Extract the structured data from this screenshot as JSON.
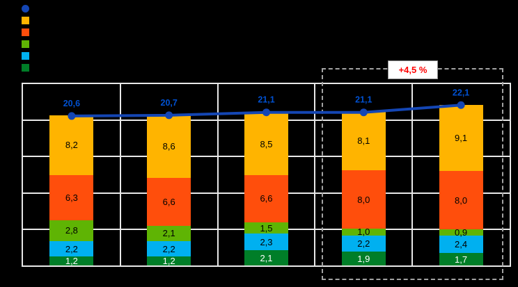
{
  "canvas": {
    "background": "#000000",
    "plot_background": "#000000",
    "grid_color": "#E8E8E8"
  },
  "legend": {
    "position": "top-left",
    "items": [
      {
        "name": "total-line",
        "marker": "circle",
        "color": "#1446B4"
      },
      {
        "name": "segment-orange",
        "marker": "square",
        "color": "#FFB400"
      },
      {
        "name": "segment-red-orange",
        "marker": "square",
        "color": "#FF4E0C"
      },
      {
        "name": "segment-green",
        "marker": "square",
        "color": "#5FB404"
      },
      {
        "name": "segment-cyan",
        "marker": "square",
        "color": "#00B0F0"
      },
      {
        "name": "segment-dark-green",
        "marker": "square",
        "color": "#007E28"
      }
    ]
  },
  "annotation": {
    "label": "+4,5 %",
    "color": "#FF0000"
  },
  "chart_data": {
    "type": "bar",
    "subtype": "stacked-bars-with-total-line",
    "title": "",
    "xlabel": "",
    "ylabel": "",
    "categories": [
      "",
      "",
      "",
      "",
      ""
    ],
    "ylim": [
      0,
      25
    ],
    "y_gridline_step": 5,
    "grid": true,
    "legend_position": "top-left",
    "stack_order": "bottom-to-top",
    "bar_series": [
      {
        "name": "dark-green",
        "color": "#007E28",
        "values": [
          1.2,
          1.2,
          2.1,
          1.9,
          1.7
        ],
        "labels": [
          "1,2",
          "1,2",
          "2,1",
          "1,9",
          "1,7"
        ],
        "label_color": "#FFFFFF"
      },
      {
        "name": "cyan",
        "color": "#00B0F0",
        "values": [
          2.2,
          2.2,
          2.3,
          2.2,
          2.4
        ],
        "labels": [
          "2,2",
          "2,2",
          "2,3",
          "2,2",
          "2,4"
        ],
        "label_color": "#000000"
      },
      {
        "name": "green",
        "color": "#5FB404",
        "values": [
          2.8,
          2.1,
          1.5,
          1.0,
          0.9
        ],
        "labels": [
          "2,8",
          "2,1",
          "1,5",
          "1,0",
          "0,9"
        ],
        "label_color": "#000000"
      },
      {
        "name": "red-orange",
        "color": "#FF4E0C",
        "values": [
          6.3,
          6.6,
          6.6,
          8.0,
          8.0
        ],
        "labels": [
          "6,3",
          "6,6",
          "6,6",
          "8,0",
          "8,0"
        ],
        "label_color": "#000000"
      },
      {
        "name": "orange",
        "color": "#FFB400",
        "values": [
          8.2,
          8.6,
          8.5,
          8.1,
          9.1
        ],
        "labels": [
          "8,2",
          "8,6",
          "8,5",
          "8,1",
          "9,1"
        ],
        "label_color": "#000000"
      }
    ],
    "line_series": {
      "name": "total",
      "color": "#1446B4",
      "values": [
        20.6,
        20.7,
        21.1,
        21.1,
        22.1
      ],
      "labels": [
        "20,6",
        "20,7",
        "21,1",
        "21,1",
        "22,1"
      ],
      "label_color": "#0051D2"
    },
    "highlight_box": {
      "category_indexes": [
        3,
        4
      ],
      "style": "dashed",
      "color": "#A3A3A3",
      "annotation": "+4,5 %"
    }
  }
}
